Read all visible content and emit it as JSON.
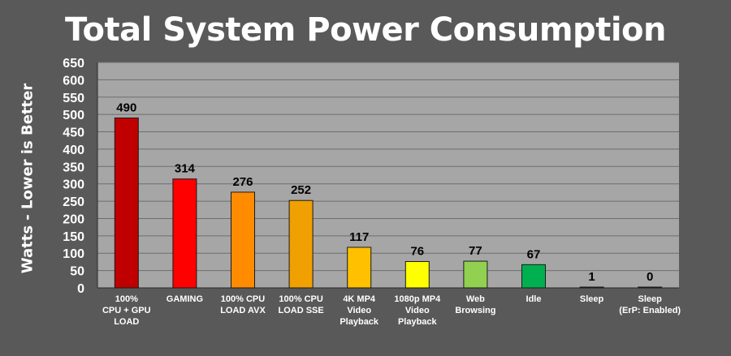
{
  "chart_data": {
    "type": "bar",
    "title": "Total System Power Consumption",
    "ylabel": "Watts - Lower is Better",
    "xlabel": "",
    "ylim": [
      0,
      650
    ],
    "yticks": [
      0,
      50,
      100,
      150,
      200,
      250,
      300,
      350,
      400,
      450,
      500,
      550,
      600,
      650
    ],
    "grid": true,
    "legend": "none",
    "categories": [
      [
        "100%",
        "CPU + GPU",
        "LOAD"
      ],
      [
        "GAMING"
      ],
      [
        "100% CPU",
        "LOAD AVX"
      ],
      [
        "100% CPU",
        "LOAD SSE"
      ],
      [
        "4K MP4",
        "Video",
        "Playback"
      ],
      [
        "1080p MP4",
        "Video",
        "Playback"
      ],
      [
        "Web",
        "Browsing"
      ],
      [
        "Idle"
      ],
      [
        "Sleep"
      ],
      [
        "Sleep",
        "(ErP: Enabled)"
      ]
    ],
    "values": [
      490,
      314,
      276,
      252,
      117,
      76,
      77,
      67,
      1,
      0
    ],
    "bar_colors": [
      "#c00000",
      "#ff0000",
      "#ff8c00",
      "#f0a000",
      "#ffc000",
      "#ffff00",
      "#92d050",
      "#00b050",
      "#00b050",
      "#00b050"
    ],
    "colors": {
      "background": "#595959",
      "plot_area": "#a6a6a6",
      "grid": "#6e6e6e",
      "text": "#ffffff",
      "data_label": "#000000"
    }
  }
}
